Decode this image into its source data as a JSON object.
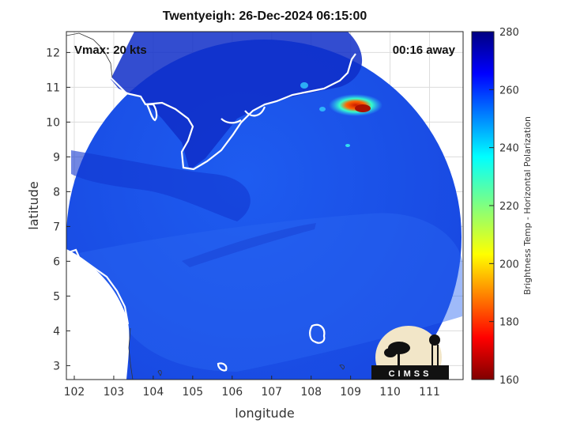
{
  "title": "Twentyeigh: 26-Dec-2024 06:15:00",
  "overlay": {
    "vmax_text": "Vmax: 20 kts",
    "away_text": "00:16 away"
  },
  "axes": {
    "xlabel": "longitude",
    "ylabel": "latitude",
    "xticks": [
      "102",
      "103",
      "104",
      "105",
      "106",
      "107",
      "108",
      "109",
      "110",
      "111"
    ],
    "yticks": [
      "12",
      "11",
      "10",
      "9",
      "8",
      "7",
      "6",
      "5",
      "4",
      "3"
    ],
    "xlim": [
      101.8,
      111.85
    ],
    "ylim": [
      2.6,
      12.6
    ]
  },
  "colorbar": {
    "label": "Brightness Temp - Horizontal Polarization",
    "ticks": [
      "280",
      "260",
      "240",
      "220",
      "200",
      "180",
      "160"
    ],
    "range": [
      160,
      280
    ],
    "colormap": "jet"
  },
  "logo": {
    "text": "CIMSS"
  },
  "colors": {
    "swath_base": "#1a4fe6",
    "coastline": "#ffffff",
    "land_left": "#ffffff",
    "hot_spot": "#cc1a00"
  }
}
